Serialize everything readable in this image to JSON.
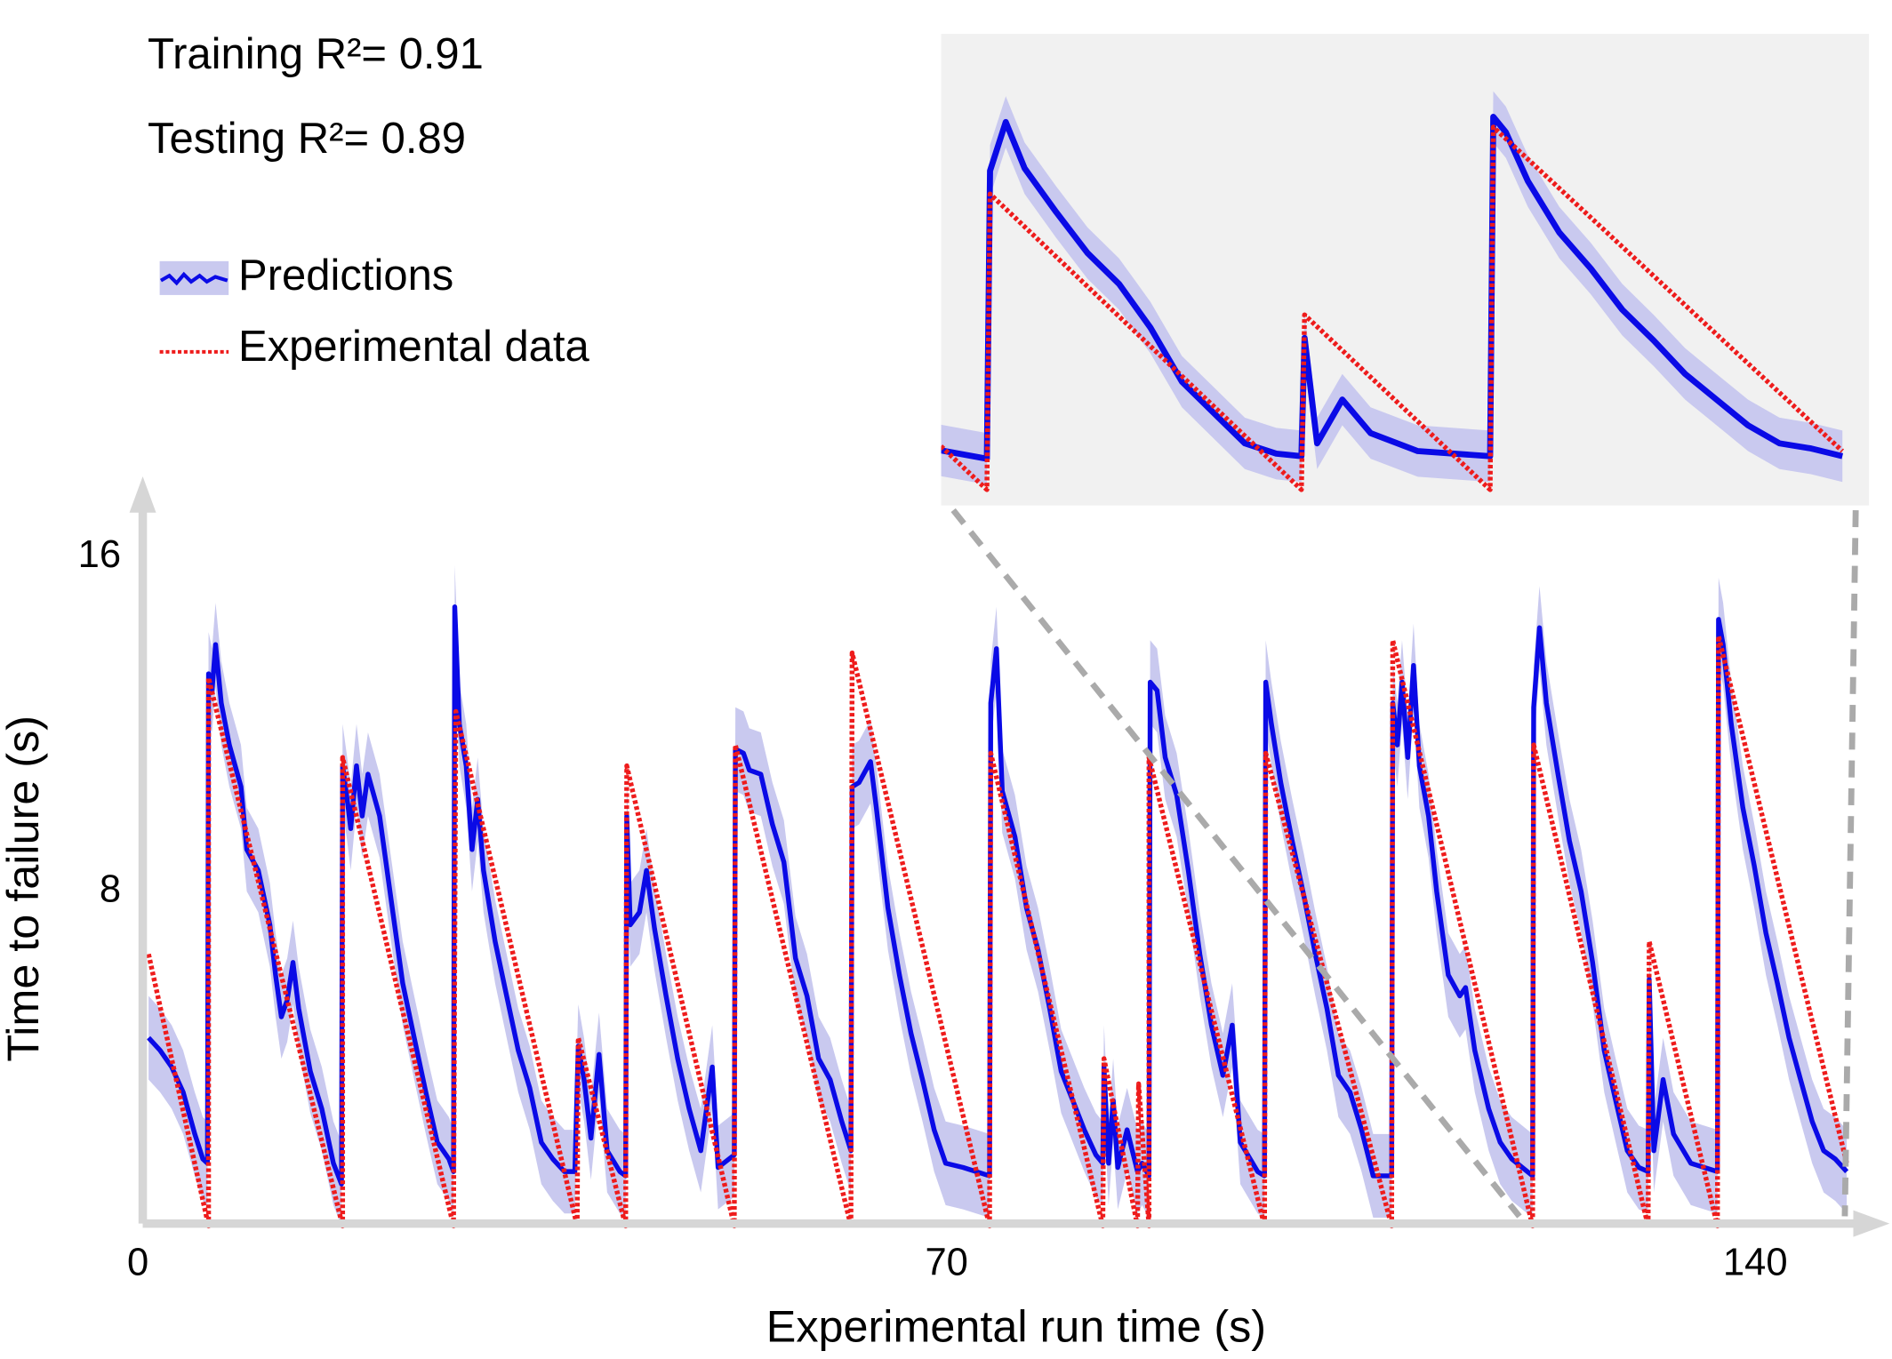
{
  "chart_data": {
    "type": "line",
    "annotations": [
      "Training R²= 0.91",
      "Testing R²= 0.89"
    ],
    "x_label": "Experimental run time (s)",
    "y_label": "Time to failure (s)",
    "xlim": [
      0,
      148
    ],
    "ylim": [
      0,
      17.5
    ],
    "xticks": [
      0,
      70,
      140
    ],
    "yticks": [
      8,
      16
    ],
    "inset": {
      "xlim": [
        119,
        147.5
      ],
      "ylim": [
        -0.5,
        17.6
      ]
    },
    "series": [
      {
        "name": "Predictions",
        "color": "#0a0ae6",
        "band": 1.0,
        "band_color": "#c9c9ef",
        "x": [
          0.5,
          1.5,
          2.5,
          3.5,
          4.5,
          5.2,
          5.6,
          5.7,
          6.0,
          6.3,
          6.8,
          7.5,
          8.5,
          9.0,
          10,
          11,
          11.5,
          12,
          12.5,
          13,
          13.5,
          14.5,
          15.5,
          16.5,
          17.2,
          17.3,
          17.7,
          18,
          18.5,
          19,
          19.5,
          20.5,
          21.5,
          22.5,
          23.5,
          24.5,
          25.5,
          26.5,
          26.9,
          27.0,
          27.4,
          28,
          28.5,
          29,
          29.5,
          30.5,
          31.5,
          32.5,
          33.5,
          34.5,
          35.5,
          36.5,
          37.4,
          37.7,
          38.2,
          38.8,
          39.5,
          40.2,
          41.3,
          41.8,
          41.9,
          42.2,
          43,
          43.6,
          44.3,
          45.3,
          46.3,
          47.3,
          48.3,
          49.3,
          49.8,
          51.2,
          51.3,
          52,
          52.5,
          53.5,
          54.5,
          55.5,
          56.5,
          57.5,
          58.5,
          59.5,
          60.5,
          61.3,
          61.4,
          62,
          63,
          63.5,
          64.5,
          65.5,
          66.5,
          67.5,
          68.5,
          69.5,
          71,
          73.3,
          73.4,
          73.9,
          74.4,
          75.5,
          76.5,
          77.5,
          78.5,
          79.5,
          80.5,
          81.5,
          82.5,
          83.1,
          83.2,
          83.6,
          84.0,
          84.4,
          85.2,
          86.1,
          86.5,
          87.1,
          87.2,
          87.8,
          88.5,
          89.5,
          90.5,
          91.5,
          92.5,
          93.5,
          94.3,
          95,
          96.5,
          97.1,
          97.2,
          97.7,
          98.5,
          99.5,
          100.5,
          101.5,
          102.5,
          103.5,
          104.5,
          105.5,
          106.5,
          108.1,
          108.2,
          108.6,
          109,
          109.5,
          110,
          110.5,
          111.3,
          112.0,
          113,
          114,
          114.5,
          115.3,
          116.5,
          117.5,
          118.5,
          120.3,
          120.4,
          120.9,
          121.5,
          122.5,
          123.5,
          124.5,
          125.5,
          126.5,
          127.5,
          128.5,
          129.5,
          130.3,
          130.4,
          130.8,
          131.6,
          132.5,
          134,
          136.3,
          136.4,
          136.8,
          137.5,
          138.5,
          139.5,
          140.5,
          141.5,
          142.5,
          143.5,
          144.5,
          145.5,
          146.5,
          147.5
        ],
        "values": [
          4.5,
          4.2,
          3.8,
          3.2,
          2.2,
          1.6,
          1.5,
          13.2,
          12.8,
          13.9,
          12.5,
          11.5,
          10.5,
          9.0,
          8.5,
          7.2,
          6.0,
          5.0,
          5.4,
          6.3,
          5.2,
          3.7,
          2.8,
          1.5,
          1.0,
          11.0,
          10.2,
          9.5,
          11.0,
          9.8,
          10.8,
          9.8,
          7.8,
          5.8,
          4.5,
          3.2,
          2.0,
          1.6,
          1.3,
          14.8,
          12.0,
          11.0,
          9.0,
          10.2,
          8.5,
          6.8,
          5.5,
          4.2,
          3.3,
          2.0,
          1.6,
          1.3,
          1.3,
          4.3,
          3.5,
          2.1,
          4.1,
          1.8,
          1.3,
          1.2,
          9.8,
          7.2,
          7.5,
          8.5,
          7.1,
          5.5,
          4.0,
          2.8,
          1.8,
          3.8,
          1.4,
          1.7,
          11.4,
          11.3,
          10.9,
          10.8,
          9.6,
          8.7,
          6.4,
          5.5,
          4.0,
          3.5,
          2.5,
          1.8,
          10.5,
          10.6,
          11.1,
          10.0,
          7.6,
          6.0,
          4.6,
          3.5,
          2.3,
          1.5,
          1.4,
          1.2,
          12.5,
          13.8,
          10.4,
          9.3,
          7.6,
          6.6,
          5.2,
          3.7,
          3.0,
          2.3,
          1.7,
          1.5,
          3.8,
          1.5,
          3.0,
          1.4,
          2.3,
          1.3,
          1.5,
          1.2,
          13.0,
          12.8,
          11.2,
          10.3,
          8.5,
          6.5,
          4.8,
          3.6,
          4.8,
          2.0,
          1.3,
          1.2,
          13.0,
          12.0,
          10.6,
          9.2,
          7.9,
          6.5,
          5.2,
          3.6,
          3.2,
          2.3,
          1.2,
          1.2,
          12.5,
          11.5,
          13.0,
          11.2,
          13.4,
          11.0,
          9.8,
          8.0,
          6.0,
          5.5,
          5.7,
          4.2,
          2.8,
          2.0,
          1.6,
          1.2,
          12.4,
          14.3,
          12.5,
          10.8,
          9.2,
          8.0,
          6.3,
          4.2,
          3.0,
          1.8,
          1.4,
          1.3,
          5.9,
          1.8,
          3.5,
          2.2,
          1.5,
          1.3,
          14.5,
          13.9,
          12.0,
          10.0,
          8.6,
          7.0,
          5.8,
          4.5,
          3.5,
          2.5,
          1.8,
          1.6,
          1.3
        ]
      },
      {
        "name": "Experimental data",
        "color": "#ee1c1c",
        "x": [
          0.5,
          5.7,
          5.7,
          17.3,
          17.3,
          26.9,
          27.1,
          37.6,
          37.7,
          41.8,
          41.9,
          51.2,
          51.3,
          61.3,
          61.4,
          73.3,
          73.4,
          83.1,
          83.2,
          86.1,
          86.2,
          87.1,
          87.1,
          97.1,
          97.2,
          108.1,
          108.2,
          120.3,
          120.4,
          130.3,
          130.4,
          136.3,
          136.4,
          147.5
        ],
        "values": [
          6.5,
          0,
          13.1,
          0,
          11.2,
          0,
          12.3,
          0,
          4.5,
          0,
          11.0,
          0,
          11.5,
          0,
          13.7,
          0,
          11.3,
          0,
          4.0,
          0,
          3.4,
          0,
          11.2,
          0,
          11.3,
          0,
          14.0,
          0,
          11.5,
          0,
          6.8,
          0,
          14.1,
          1.5
        ]
      }
    ]
  }
}
